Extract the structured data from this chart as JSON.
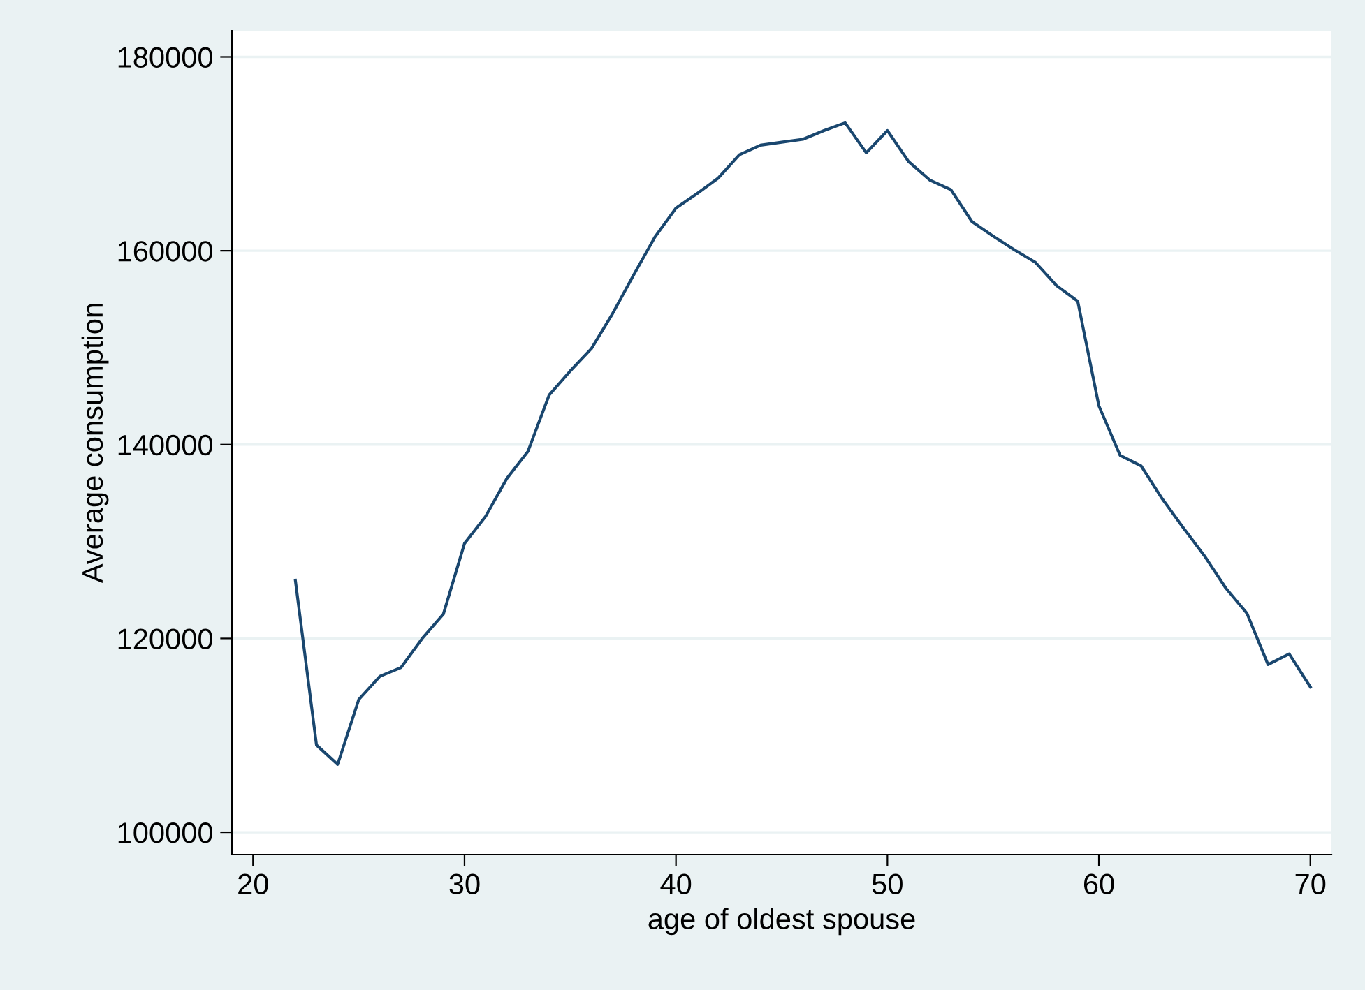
{
  "chart_data": {
    "type": "line",
    "xlabel": "age of oldest spouse",
    "ylabel": "Average consumption",
    "x": [
      22,
      23,
      24,
      25,
      26,
      27,
      28,
      29,
      30,
      31,
      32,
      33,
      34,
      35,
      36,
      37,
      38,
      39,
      40,
      41,
      42,
      43,
      44,
      45,
      46,
      47,
      48,
      49,
      50,
      51,
      52,
      53,
      54,
      55,
      56,
      57,
      58,
      59,
      60,
      61,
      62,
      63,
      64,
      65,
      66,
      67,
      68,
      69,
      70
    ],
    "series": [
      {
        "color": "#1a476f",
        "values": [
          126000,
          109000,
          107000,
          113700,
          116100,
          117000,
          120000,
          122500,
          129800,
          132600,
          136500,
          139300,
          145100,
          147600,
          149900,
          153500,
          157500,
          161400,
          164400,
          165900,
          167500,
          169900,
          170900,
          171200,
          171500,
          172400,
          173200,
          170100,
          172400,
          169200,
          167300,
          166300,
          163000,
          161500,
          160100,
          158800,
          156400,
          154800,
          144000,
          138900,
          137800,
          134400,
          131400,
          128500,
          125200,
          122600,
          117300,
          118400,
          115000
        ]
      }
    ],
    "xlim": [
      19,
      71
    ],
    "ylim": [
      97700,
      182700
    ],
    "xticks": [
      20,
      30,
      40,
      50,
      60,
      70
    ],
    "yticks": [
      100000,
      120000,
      140000,
      160000,
      180000
    ],
    "grid": "y",
    "legend": false,
    "line_style": "solid",
    "marker": "none"
  }
}
